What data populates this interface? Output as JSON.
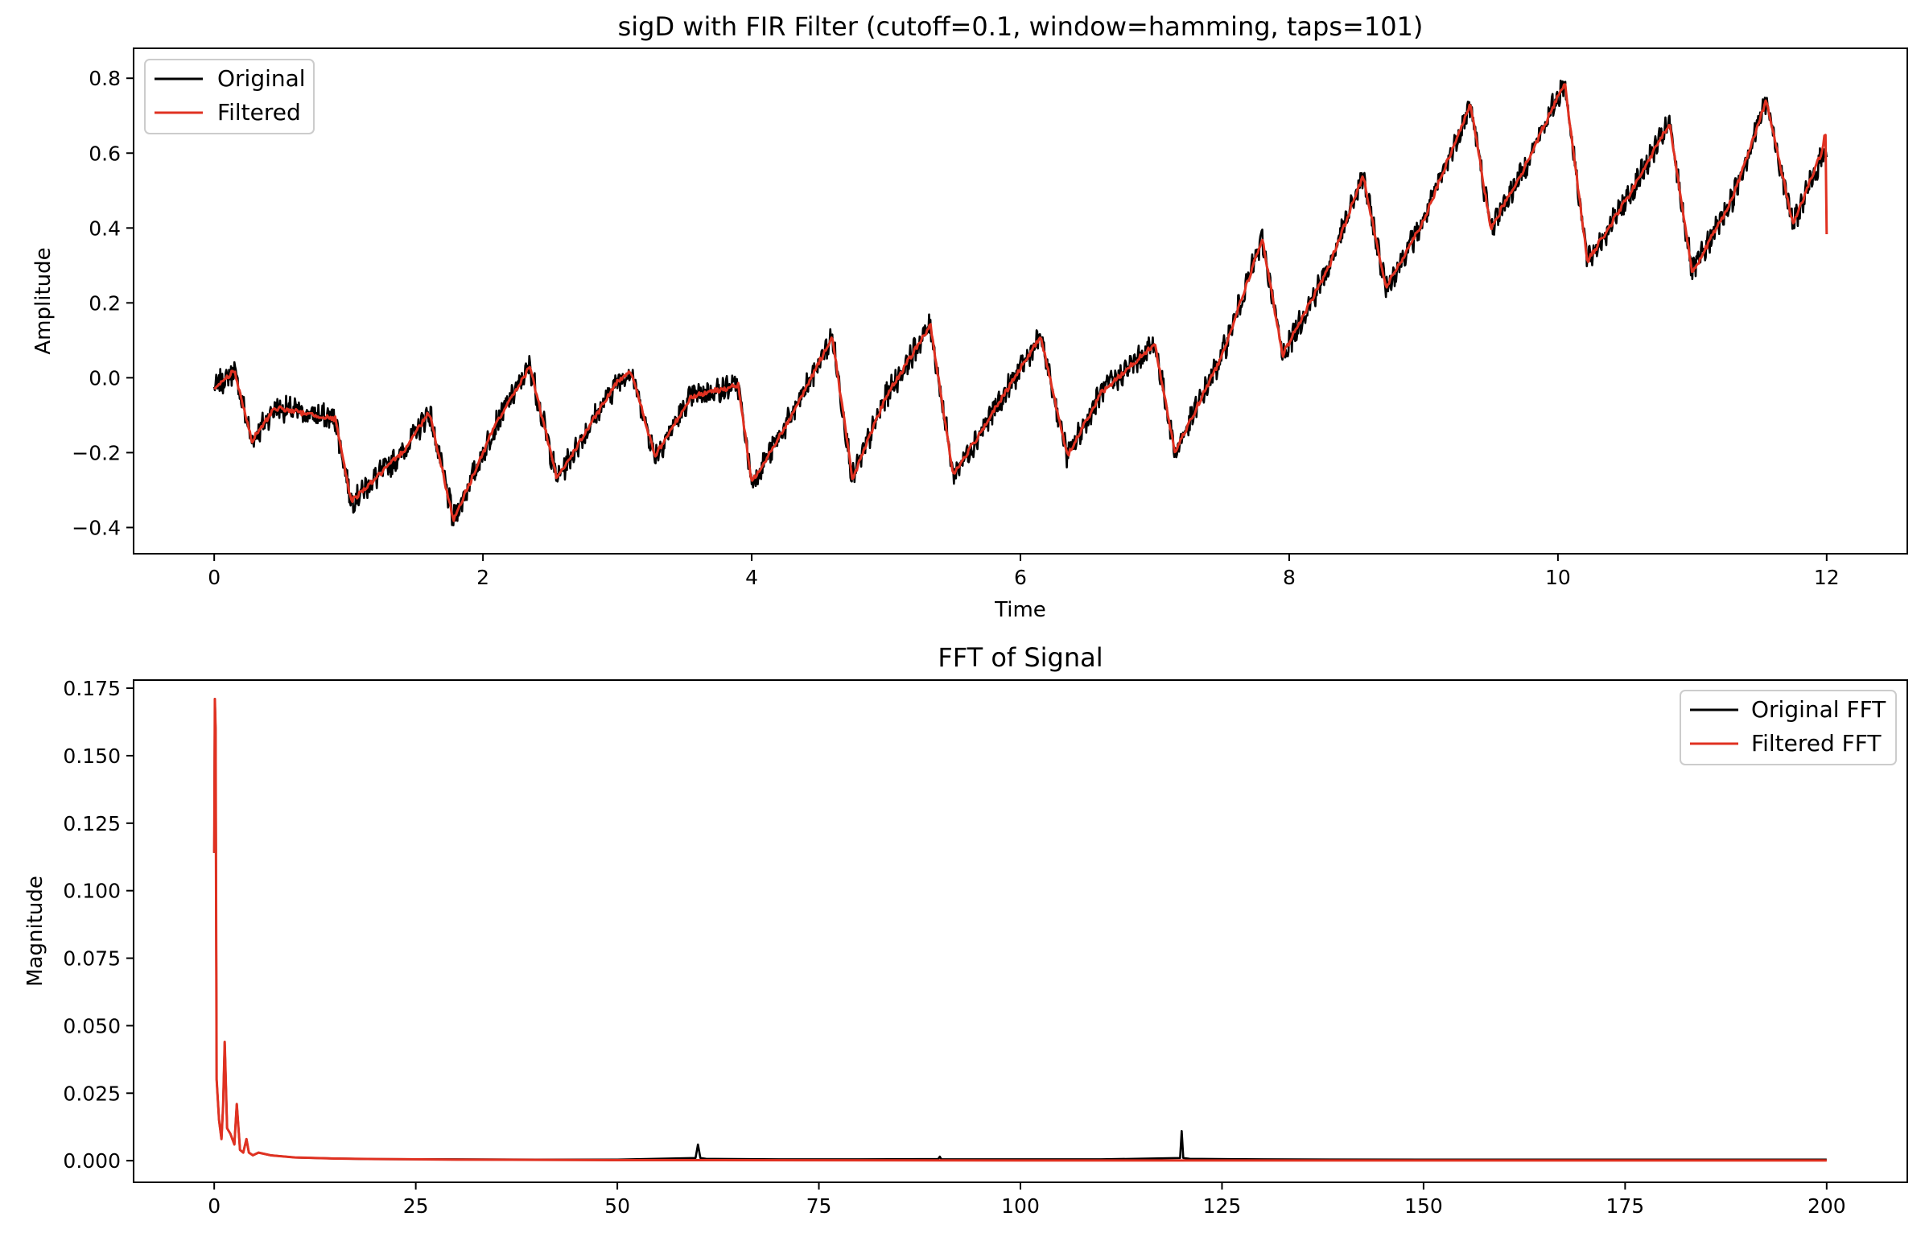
{
  "chart_data": [
    {
      "type": "line",
      "title": "sigD with FIR Filter (cutoff=0.1, window=hamming, taps=101)",
      "xlabel": "Time",
      "ylabel": "Amplitude",
      "xlim": [
        -0.6,
        12.6
      ],
      "ylim": [
        -0.47,
        0.88
      ],
      "xticks": [
        0,
        2,
        4,
        6,
        8,
        10,
        12
      ],
      "yticks": [
        -0.4,
        -0.2,
        0.0,
        0.2,
        0.4,
        0.6,
        0.8
      ],
      "ytick_labels": [
        "−0.4",
        "−0.2",
        "0.0",
        "0.2",
        "0.4",
        "0.6",
        "0.8"
      ],
      "grid": false,
      "legend": {
        "placement": "upper-left",
        "entries": [
          "Original",
          "Filtered"
        ]
      },
      "series": [
        {
          "name": "Original",
          "color": "#000000",
          "noise": 0.03,
          "x": [
            0,
            0.15,
            0.28,
            0.45,
            0.9,
            1.02,
            1.4,
            1.6,
            1.78,
            2.1,
            2.35,
            2.55,
            3.0,
            3.1,
            3.28,
            3.55,
            3.9,
            4.0,
            4.3,
            4.6,
            4.75,
            5.0,
            5.33,
            5.5,
            5.8,
            6.15,
            6.35,
            6.6,
            7.0,
            7.15,
            7.5,
            7.8,
            7.95,
            8.3,
            8.55,
            8.72,
            9.0,
            9.35,
            9.5,
            9.75,
            10.05,
            10.22,
            10.55,
            10.83,
            11.0,
            11.3,
            11.55,
            11.75,
            12.0
          ],
          "y": [
            -0.03,
            0.02,
            -0.17,
            -0.08,
            -0.11,
            -0.33,
            -0.2,
            -0.09,
            -0.38,
            -0.12,
            0.03,
            -0.27,
            -0.01,
            0.02,
            -0.21,
            -0.05,
            -0.02,
            -0.28,
            -0.1,
            0.11,
            -0.27,
            -0.05,
            0.14,
            -0.26,
            -0.09,
            0.11,
            -0.21,
            -0.04,
            0.09,
            -0.2,
            0.06,
            0.37,
            0.06,
            0.3,
            0.54,
            0.24,
            0.42,
            0.73,
            0.4,
            0.56,
            0.79,
            0.31,
            0.5,
            0.68,
            0.28,
            0.48,
            0.74,
            0.41,
            0.62
          ]
        },
        {
          "name": "Filtered",
          "color": "#e03121",
          "noise": 0.006,
          "x": [
            0,
            0.15,
            0.28,
            0.45,
            0.9,
            1.02,
            1.4,
            1.6,
            1.78,
            2.1,
            2.35,
            2.55,
            3.0,
            3.1,
            3.28,
            3.55,
            3.9,
            4.0,
            4.3,
            4.6,
            4.75,
            5.0,
            5.33,
            5.5,
            5.8,
            6.15,
            6.35,
            6.6,
            7.0,
            7.15,
            7.5,
            7.8,
            7.95,
            8.3,
            8.55,
            8.72,
            9.0,
            9.35,
            9.5,
            9.75,
            10.05,
            10.22,
            10.55,
            10.83,
            11.0,
            11.3,
            11.55,
            11.75,
            11.98,
            11.99,
            12.0
          ],
          "y": [
            -0.03,
            0.02,
            -0.17,
            -0.08,
            -0.11,
            -0.33,
            -0.2,
            -0.09,
            -0.38,
            -0.12,
            0.03,
            -0.27,
            -0.01,
            0.02,
            -0.21,
            -0.05,
            -0.02,
            -0.28,
            -0.1,
            0.11,
            -0.27,
            -0.05,
            0.14,
            -0.26,
            -0.09,
            0.11,
            -0.21,
            -0.04,
            0.09,
            -0.2,
            0.06,
            0.37,
            0.06,
            0.3,
            0.54,
            0.24,
            0.42,
            0.73,
            0.4,
            0.56,
            0.79,
            0.31,
            0.5,
            0.68,
            0.28,
            0.48,
            0.74,
            0.41,
            0.62,
            0.69,
            0.38
          ]
        }
      ]
    },
    {
      "type": "line",
      "title": "FFT of Signal",
      "xlabel": "",
      "ylabel": "Magnitude",
      "xlim": [
        -10,
        210
      ],
      "ylim": [
        -0.008,
        0.178
      ],
      "xticks": [
        0,
        25,
        50,
        75,
        100,
        125,
        150,
        175,
        200
      ],
      "yticks": [
        0.0,
        0.025,
        0.05,
        0.075,
        0.1,
        0.125,
        0.15,
        0.175
      ],
      "ytick_labels": [
        "0.000",
        "0.025",
        "0.050",
        "0.075",
        "0.100",
        "0.125",
        "0.150",
        "0.175"
      ],
      "grid": false,
      "legend": {
        "placement": "upper-right",
        "entries": [
          "Original FFT",
          "Filtered FFT"
        ]
      },
      "series": [
        {
          "name": "Original FFT",
          "color": "#000000",
          "x": [
            0,
            0.08,
            0.17,
            0.3,
            0.6,
            0.9,
            1.1,
            1.3,
            1.6,
            2.0,
            2.5,
            2.8,
            3.2,
            3.6,
            4.0,
            4.3,
            4.8,
            5.5,
            7,
            10,
            15,
            20,
            30,
            40,
            50,
            59.7,
            60.0,
            60.3,
            61,
            70,
            80,
            89.8,
            90.0,
            90.2,
            100,
            110,
            119.8,
            120.0,
            120.2,
            121,
            130,
            150,
            170,
            190,
            200
          ],
          "y": [
            0.114,
            0.171,
            0.16,
            0.03,
            0.015,
            0.008,
            0.02,
            0.044,
            0.012,
            0.01,
            0.006,
            0.021,
            0.004,
            0.003,
            0.008,
            0.003,
            0.002,
            0.003,
            0.002,
            0.0012,
            0.0008,
            0.0006,
            0.0005,
            0.0004,
            0.0004,
            0.001,
            0.006,
            0.001,
            0.0007,
            0.0005,
            0.0005,
            0.0006,
            0.0015,
            0.0005,
            0.0005,
            0.0005,
            0.001,
            0.011,
            0.001,
            0.0007,
            0.0005,
            0.0004,
            0.0004,
            0.0004,
            0.0004
          ]
        },
        {
          "name": "Filtered FFT",
          "color": "#e03121",
          "x": [
            0,
            0.08,
            0.17,
            0.3,
            0.6,
            0.9,
            1.1,
            1.3,
            1.6,
            2.0,
            2.5,
            2.8,
            3.2,
            3.6,
            4.0,
            4.3,
            4.8,
            5.5,
            7,
            10,
            15,
            20,
            30,
            40,
            50,
            60,
            100,
            150,
            200
          ],
          "y": [
            0.114,
            0.171,
            0.16,
            0.03,
            0.015,
            0.008,
            0.02,
            0.044,
            0.012,
            0.01,
            0.006,
            0.021,
            0.004,
            0.003,
            0.008,
            0.003,
            0.002,
            0.003,
            0.002,
            0.0012,
            0.0008,
            0.0006,
            0.0004,
            0.0003,
            0.0002,
            0.0002,
            0.0001,
            0.0001,
            0.0001
          ]
        }
      ]
    }
  ]
}
